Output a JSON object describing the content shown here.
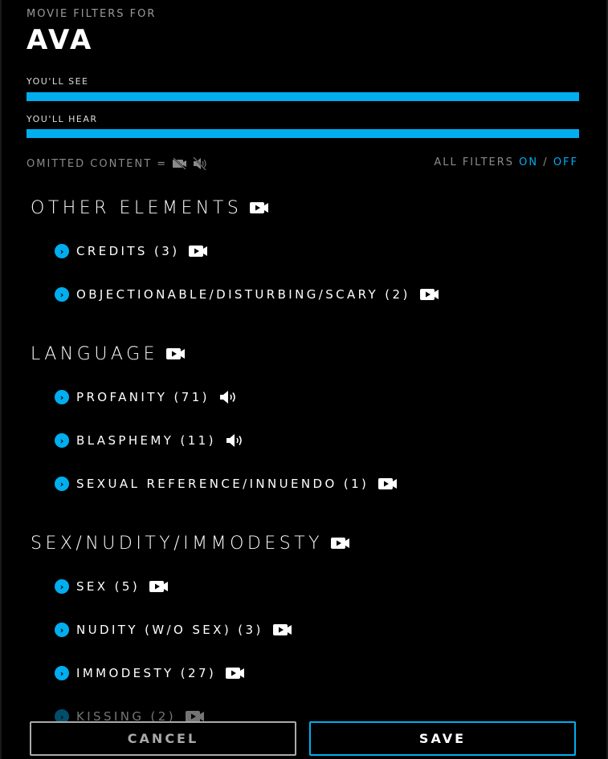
{
  "header": {
    "subtitle": "MOVIE FILTERS FOR",
    "title": "AVA"
  },
  "meters": {
    "see_label": "YOU'LL SEE",
    "see_level": 1.0,
    "hear_label": "YOU'LL HEAR",
    "hear_level": 1.0,
    "color": "#00aeef"
  },
  "omitted_label": "OMITTED CONTENT =",
  "all_filters": {
    "label": "ALL FILTERS",
    "on": "ON",
    "sep": "/",
    "off": "OFF"
  },
  "categories": [
    {
      "name": "OTHER ELEMENTS",
      "icon": "video-icon",
      "items": [
        {
          "label": "CREDITS (3)",
          "icon": "video-icon"
        },
        {
          "label": "OBJECTIONABLE/DISTURBING/SCARY (2)",
          "icon": "video-icon"
        }
      ]
    },
    {
      "name": "LANGUAGE",
      "icon": "video-icon",
      "items": [
        {
          "label": "PROFANITY (71)",
          "icon": "audio-icon"
        },
        {
          "label": "BLASPHEMY (11)",
          "icon": "audio-icon"
        },
        {
          "label": "SEXUAL REFERENCE/INNUENDO (1)",
          "icon": "video-icon"
        }
      ]
    },
    {
      "name": "SEX/NUDITY/IMMODESTY",
      "icon": "video-icon",
      "items": [
        {
          "label": "SEX (5)",
          "icon": "video-icon"
        },
        {
          "label": "NUDITY (W/O SEX) (3)",
          "icon": "video-icon"
        },
        {
          "label": "IMMODESTY (27)",
          "icon": "video-icon"
        },
        {
          "label": "KISSING (2)",
          "icon": "video-icon"
        }
      ]
    }
  ],
  "buttons": {
    "cancel": "CANCEL",
    "save": "SAVE"
  }
}
